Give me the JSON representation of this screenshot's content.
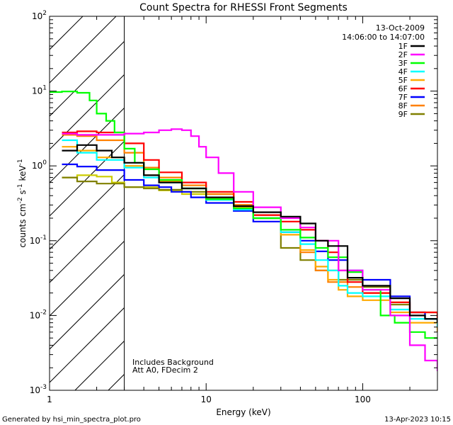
{
  "chart_data": {
    "type": "line",
    "title": "Count Spectra for RHESSI Front Segments",
    "xlabel": "Energy (keV)",
    "ylabel_parts": [
      "counts cm",
      "-2",
      " s",
      "-1",
      " keV",
      "-1"
    ],
    "xscale": "log",
    "yscale": "log",
    "xlim": [
      1,
      300
    ],
    "ylim": [
      0.001,
      100
    ],
    "x_ticks": [
      {
        "value": 1,
        "label": "1"
      },
      {
        "value": 10,
        "label": "10"
      },
      {
        "value": 100,
        "label": "100"
      }
    ],
    "y_ticks": [
      {
        "value": 0.001,
        "base": "10",
        "exp": "-3"
      },
      {
        "value": 0.01,
        "base": "10",
        "exp": "-2"
      },
      {
        "value": 0.1,
        "base": "10",
        "exp": "-1"
      },
      {
        "value": 1,
        "base": "10",
        "exp": "0"
      },
      {
        "value": 10,
        "base": "10",
        "exp": "1"
      },
      {
        "value": 100,
        "base": "10",
        "exp": "2"
      }
    ],
    "hatched_region_x": [
      1,
      3
    ],
    "date": "13-Oct-2009",
    "time_range": "14:06:00 to 14:07:00",
    "annotations": [
      "Includes Background",
      "Att A0, FDecim 2"
    ],
    "series": [
      {
        "name": "1F",
        "color": "#000000",
        "points": [
          [
            1.2,
            1.6
          ],
          [
            1.5,
            1.9
          ],
          [
            2,
            1.6
          ],
          [
            2.5,
            1.3
          ],
          [
            3,
            1.1
          ],
          [
            4,
            0.75
          ],
          [
            5,
            0.6
          ],
          [
            7,
            0.5
          ],
          [
            10,
            0.38
          ],
          [
            15,
            0.29
          ],
          [
            20,
            0.24
          ],
          [
            30,
            0.21
          ],
          [
            40,
            0.17
          ],
          [
            50,
            0.1
          ],
          [
            60,
            0.085
          ],
          [
            80,
            0.032
          ],
          [
            100,
            0.025
          ],
          [
            150,
            0.017
          ],
          [
            200,
            0.01
          ],
          [
            250,
            0.009
          ],
          [
            300,
            0.008
          ]
        ]
      },
      {
        "name": "2F",
        "color": "#ff00ff",
        "points": [
          [
            1.2,
            2.7
          ],
          [
            1.5,
            2.6
          ],
          [
            2,
            2.6
          ],
          [
            3,
            2.7
          ],
          [
            4,
            2.8
          ],
          [
            5,
            3.0
          ],
          [
            6,
            3.1
          ],
          [
            7,
            3.0
          ],
          [
            8,
            2.5
          ],
          [
            9,
            1.8
          ],
          [
            10,
            1.3
          ],
          [
            12,
            0.8
          ],
          [
            15,
            0.45
          ],
          [
            20,
            0.28
          ],
          [
            30,
            0.2
          ],
          [
            40,
            0.15
          ],
          [
            50,
            0.1
          ],
          [
            70,
            0.04
          ],
          [
            100,
            0.022
          ],
          [
            150,
            0.01
          ],
          [
            200,
            0.004
          ],
          [
            250,
            0.0025
          ],
          [
            300,
            0.0018
          ]
        ]
      },
      {
        "name": "3F",
        "color": "#00ff00",
        "points": [
          [
            1.0,
            9.7
          ],
          [
            1.2,
            9.9
          ],
          [
            1.5,
            9.5
          ],
          [
            1.8,
            7.5
          ],
          [
            2,
            5.0
          ],
          [
            2.3,
            4.0
          ],
          [
            2.6,
            2.8
          ],
          [
            3,
            1.7
          ],
          [
            3.5,
            1.1
          ],
          [
            4,
            0.9
          ],
          [
            5,
            0.65
          ],
          [
            7,
            0.5
          ],
          [
            10,
            0.36
          ],
          [
            15,
            0.27
          ],
          [
            20,
            0.2
          ],
          [
            30,
            0.14
          ],
          [
            40,
            0.11
          ],
          [
            50,
            0.08
          ],
          [
            60,
            0.06
          ],
          [
            80,
            0.038
          ],
          [
            100,
            0.022
          ],
          [
            130,
            0.01
          ],
          [
            160,
            0.008
          ],
          [
            200,
            0.006
          ],
          [
            250,
            0.005
          ],
          [
            300,
            0.005
          ]
        ]
      },
      {
        "name": "4F",
        "color": "#00ffff",
        "points": [
          [
            1.2,
            2.2
          ],
          [
            1.5,
            1.5
          ],
          [
            2,
            1.2
          ],
          [
            3,
            0.95
          ],
          [
            4,
            0.7
          ],
          [
            5,
            0.6
          ],
          [
            7,
            0.5
          ],
          [
            10,
            0.35
          ],
          [
            15,
            0.26
          ],
          [
            20,
            0.2
          ],
          [
            30,
            0.13
          ],
          [
            40,
            0.09
          ],
          [
            50,
            0.055
          ],
          [
            60,
            0.04
          ],
          [
            70,
            0.025
          ],
          [
            80,
            0.02
          ],
          [
            100,
            0.018
          ],
          [
            150,
            0.012
          ],
          [
            200,
            0.009
          ],
          [
            300,
            0.007
          ]
        ]
      },
      {
        "name": "5F",
        "color": "#ffaa00",
        "points": [
          [
            1.2,
            1.8
          ],
          [
            1.5,
            1.6
          ],
          [
            2,
            1.3
          ],
          [
            3,
            1.0
          ],
          [
            4,
            0.75
          ],
          [
            5,
            0.62
          ],
          [
            7,
            0.5
          ],
          [
            10,
            0.38
          ],
          [
            15,
            0.28
          ],
          [
            20,
            0.2
          ],
          [
            30,
            0.12
          ],
          [
            40,
            0.075
          ],
          [
            50,
            0.045
          ],
          [
            60,
            0.03
          ],
          [
            70,
            0.022
          ],
          [
            80,
            0.018
          ],
          [
            100,
            0.016
          ],
          [
            150,
            0.011
          ],
          [
            200,
            0.008
          ],
          [
            300,
            0.006
          ]
        ]
      },
      {
        "name": "6F",
        "color": "#ff0000",
        "points": [
          [
            1.2,
            2.8
          ],
          [
            1.5,
            2.9
          ],
          [
            2,
            2.8
          ],
          [
            3,
            2.0
          ],
          [
            4,
            1.2
          ],
          [
            5,
            0.82
          ],
          [
            7,
            0.6
          ],
          [
            10,
            0.45
          ],
          [
            15,
            0.33
          ],
          [
            20,
            0.22
          ],
          [
            30,
            0.18
          ],
          [
            40,
            0.14
          ],
          [
            50,
            0.1
          ],
          [
            60,
            0.07
          ],
          [
            70,
            0.04
          ],
          [
            80,
            0.028
          ],
          [
            100,
            0.02
          ],
          [
            150,
            0.015
          ],
          [
            200,
            0.011
          ],
          [
            300,
            0.008
          ]
        ]
      },
      {
        "name": "7F",
        "color": "#0000ff",
        "points": [
          [
            1.2,
            1.05
          ],
          [
            1.5,
            0.98
          ],
          [
            2,
            0.88
          ],
          [
            3,
            0.65
          ],
          [
            4,
            0.55
          ],
          [
            5,
            0.52
          ],
          [
            6,
            0.45
          ],
          [
            8,
            0.38
          ],
          [
            10,
            0.32
          ],
          [
            15,
            0.25
          ],
          [
            20,
            0.18
          ],
          [
            30,
            0.13
          ],
          [
            40,
            0.1
          ],
          [
            50,
            0.072
          ],
          [
            60,
            0.055
          ],
          [
            80,
            0.04
          ],
          [
            100,
            0.03
          ],
          [
            150,
            0.018
          ],
          [
            200,
            0.011
          ],
          [
            250,
            0.009
          ],
          [
            300,
            0.008
          ]
        ]
      },
      {
        "name": "8F",
        "color": "#ff8000",
        "points": [
          [
            1.2,
            2.6
          ],
          [
            1.5,
            2.5
          ],
          [
            2,
            2.2
          ],
          [
            3,
            1.5
          ],
          [
            4,
            0.95
          ],
          [
            5,
            0.7
          ],
          [
            7,
            0.55
          ],
          [
            10,
            0.42
          ],
          [
            15,
            0.3
          ],
          [
            20,
            0.22
          ],
          [
            30,
            0.13
          ],
          [
            40,
            0.07
          ],
          [
            50,
            0.04
          ],
          [
            60,
            0.028
          ],
          [
            80,
            0.024
          ],
          [
            100,
            0.02
          ],
          [
            150,
            0.015
          ],
          [
            200,
            0.011
          ],
          [
            300,
            0.008
          ]
        ]
      },
      {
        "name": "9F",
        "color": "#808000",
        "points": [
          [
            1.2,
            0.7
          ],
          [
            1.5,
            0.62
          ],
          [
            2,
            0.58
          ],
          [
            3,
            0.52
          ],
          [
            4,
            0.5
          ],
          [
            5,
            0.48
          ],
          [
            7,
            0.45
          ],
          [
            10,
            0.42
          ],
          [
            15,
            0.3
          ],
          [
            20,
            0.2
          ],
          [
            30,
            0.08
          ],
          [
            40,
            0.055
          ],
          [
            50,
            0.04
          ],
          [
            70,
            0.03
          ],
          [
            100,
            0.024
          ],
          [
            150,
            0.014
          ],
          [
            200,
            0.011
          ],
          [
            250,
            0.009
          ],
          [
            300,
            0.008
          ]
        ]
      },
      {
        "name": "",
        "color": "#cccc00",
        "points": [
          [
            1.2,
            0.7
          ],
          [
            1.5,
            0.75
          ],
          [
            2,
            0.72
          ],
          [
            2.5,
            0.6
          ],
          [
            3,
            0.52
          ],
          [
            5,
            0.47
          ],
          [
            7,
            0.42
          ],
          [
            10,
            0.38
          ],
          [
            15,
            0.3
          ],
          [
            20,
            0.2
          ]
        ]
      }
    ]
  },
  "footer": {
    "generated_by": "Generated by hsi_min_spectra_plot.pro",
    "timestamp": "13-Apr-2023 10:15"
  }
}
